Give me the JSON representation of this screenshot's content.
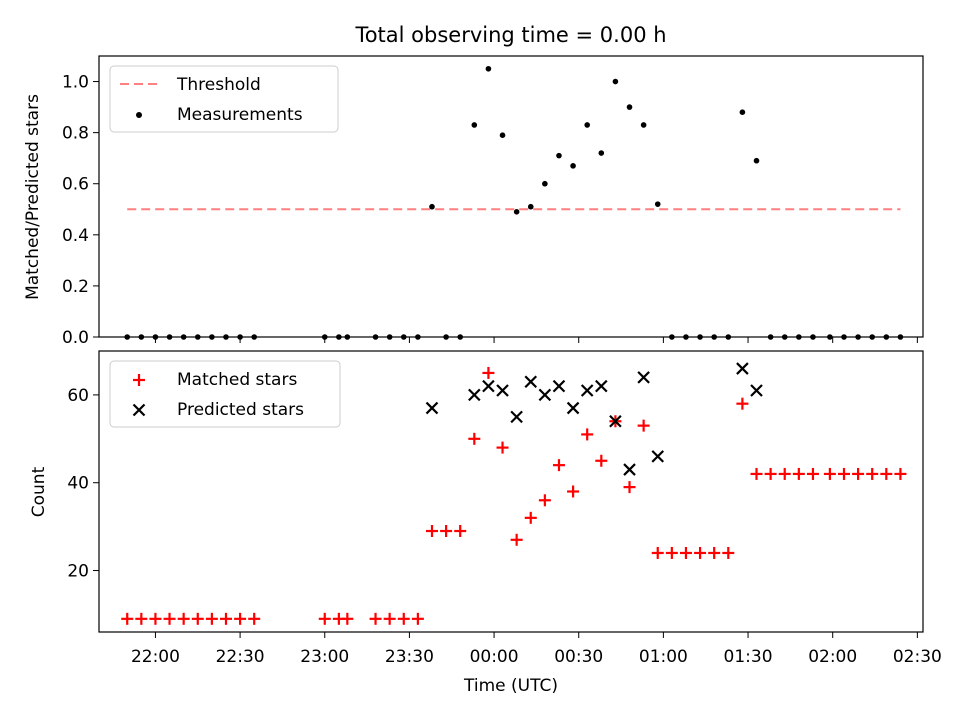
{
  "figure_title": "Total observing time = 0.00 h",
  "chart_data": [
    {
      "type": "scatter",
      "ylabel": "Matched/Predicted stars",
      "xlim": [
        "21:40",
        "02:32"
      ],
      "ylim": [
        0,
        1.1
      ],
      "y_ticks": [
        0.0,
        0.2,
        0.4,
        0.6,
        0.8,
        1.0
      ],
      "y_tick_labels": [
        "0.0",
        "0.2",
        "0.4",
        "0.6",
        "0.8",
        "1.0"
      ],
      "legend": [
        "Threshold",
        "Measurements"
      ],
      "legend_position": "upper-left",
      "threshold": {
        "name": "Threshold",
        "value": 0.5,
        "x_start": "21:50",
        "x_end": "02:24",
        "color": "#ff8080",
        "style": "dashed"
      },
      "series": [
        {
          "name": "Measurements",
          "color": "#000000",
          "marker": "dot",
          "points": [
            [
              "21:50",
              0.0
            ],
            [
              "21:55",
              0.0
            ],
            [
              "22:00",
              0.0
            ],
            [
              "22:05",
              0.0
            ],
            [
              "22:10",
              0.0
            ],
            [
              "22:15",
              0.0
            ],
            [
              "22:20",
              0.0
            ],
            [
              "22:25",
              0.0
            ],
            [
              "22:30",
              0.0
            ],
            [
              "22:35",
              0.0
            ],
            [
              "23:00",
              0.0
            ],
            [
              "23:05",
              0.0
            ],
            [
              "23:08",
              0.0
            ],
            [
              "23:18",
              0.0
            ],
            [
              "23:23",
              0.0
            ],
            [
              "23:28",
              0.0
            ],
            [
              "23:33",
              0.0
            ],
            [
              "23:38",
              0.51
            ],
            [
              "23:43",
              0.0
            ],
            [
              "23:48",
              0.0
            ],
            [
              "23:53",
              0.83
            ],
            [
              "23:58",
              1.05
            ],
            [
              "00:03",
              0.79
            ],
            [
              "00:08",
              0.49
            ],
            [
              "00:13",
              0.51
            ],
            [
              "00:18",
              0.6
            ],
            [
              "00:23",
              0.71
            ],
            [
              "00:28",
              0.67
            ],
            [
              "00:33",
              0.83
            ],
            [
              "00:38",
              0.72
            ],
            [
              "00:43",
              1.0
            ],
            [
              "00:48",
              0.9
            ],
            [
              "00:53",
              0.83
            ],
            [
              "00:58",
              0.52
            ],
            [
              "01:03",
              0.0
            ],
            [
              "01:08",
              0.0
            ],
            [
              "01:13",
              0.0
            ],
            [
              "01:18",
              0.0
            ],
            [
              "01:23",
              0.0
            ],
            [
              "01:28",
              0.88
            ],
            [
              "01:33",
              0.69
            ],
            [
              "01:38",
              0.0
            ],
            [
              "01:43",
              0.0
            ],
            [
              "01:48",
              0.0
            ],
            [
              "01:53",
              0.0
            ],
            [
              "01:59",
              0.0
            ],
            [
              "02:04",
              0.0
            ],
            [
              "02:09",
              0.0
            ],
            [
              "02:14",
              0.0
            ],
            [
              "02:19",
              0.0
            ],
            [
              "02:24",
              0.0
            ]
          ]
        }
      ]
    },
    {
      "type": "scatter",
      "xlabel": "Time (UTC)",
      "ylabel": "Count",
      "xlim": [
        "21:40",
        "02:32"
      ],
      "ylim": [
        6,
        70
      ],
      "x_ticks": [
        "22:00",
        "22:30",
        "23:00",
        "23:30",
        "00:00",
        "00:30",
        "01:00",
        "01:30",
        "02:00",
        "02:30"
      ],
      "y_ticks": [
        20,
        40,
        60
      ],
      "y_tick_labels": [
        "20",
        "40",
        "60"
      ],
      "legend": [
        "Matched stars",
        "Predicted stars"
      ],
      "legend_position": "upper-left",
      "series": [
        {
          "name": "Matched stars",
          "color": "#ff0000",
          "marker": "plus",
          "points": [
            [
              "21:50",
              9
            ],
            [
              "21:55",
              9
            ],
            [
              "22:00",
              9
            ],
            [
              "22:05",
              9
            ],
            [
              "22:10",
              9
            ],
            [
              "22:15",
              9
            ],
            [
              "22:20",
              9
            ],
            [
              "22:25",
              9
            ],
            [
              "22:30",
              9
            ],
            [
              "22:35",
              9
            ],
            [
              "23:00",
              9
            ],
            [
              "23:05",
              9
            ],
            [
              "23:08",
              9
            ],
            [
              "23:18",
              9
            ],
            [
              "23:23",
              9
            ],
            [
              "23:28",
              9
            ],
            [
              "23:33",
              9
            ],
            [
              "23:38",
              29
            ],
            [
              "23:43",
              29
            ],
            [
              "23:48",
              29
            ],
            [
              "23:53",
              50
            ],
            [
              "23:58",
              65
            ],
            [
              "00:03",
              48
            ],
            [
              "00:08",
              27
            ],
            [
              "00:13",
              32
            ],
            [
              "00:18",
              36
            ],
            [
              "00:23",
              44
            ],
            [
              "00:28",
              38
            ],
            [
              "00:33",
              51
            ],
            [
              "00:38",
              45
            ],
            [
              "00:43",
              54
            ],
            [
              "00:48",
              39
            ],
            [
              "00:53",
              53
            ],
            [
              "00:58",
              24
            ],
            [
              "01:03",
              24
            ],
            [
              "01:08",
              24
            ],
            [
              "01:13",
              24
            ],
            [
              "01:18",
              24
            ],
            [
              "01:23",
              24
            ],
            [
              "01:28",
              58
            ],
            [
              "01:33",
              42
            ],
            [
              "01:38",
              42
            ],
            [
              "01:43",
              42
            ],
            [
              "01:48",
              42
            ],
            [
              "01:53",
              42
            ],
            [
              "01:59",
              42
            ],
            [
              "02:04",
              42
            ],
            [
              "02:09",
              42
            ],
            [
              "02:14",
              42
            ],
            [
              "02:19",
              42
            ],
            [
              "02:24",
              42
            ]
          ]
        },
        {
          "name": "Predicted stars",
          "color": "#000000",
          "marker": "x",
          "points": [
            [
              "23:38",
              57
            ],
            [
              "23:53",
              60
            ],
            [
              "23:58",
              62
            ],
            [
              "00:03",
              61
            ],
            [
              "00:08",
              55
            ],
            [
              "00:13",
              63
            ],
            [
              "00:18",
              60
            ],
            [
              "00:23",
              62
            ],
            [
              "00:28",
              57
            ],
            [
              "00:33",
              61
            ],
            [
              "00:38",
              62
            ],
            [
              "00:43",
              54
            ],
            [
              "00:48",
              43
            ],
            [
              "00:53",
              64
            ],
            [
              "00:58",
              46
            ],
            [
              "01:28",
              66
            ],
            [
              "01:33",
              61
            ]
          ]
        }
      ]
    }
  ]
}
